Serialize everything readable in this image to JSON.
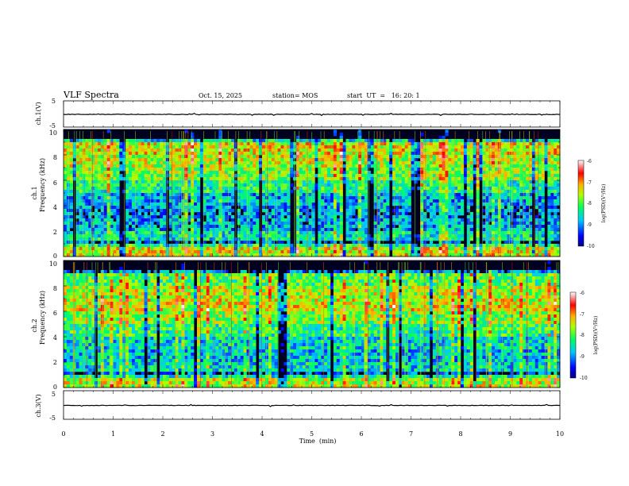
{
  "header": {
    "title": "VLF Spectra",
    "date": "Oct. 15, 2025",
    "station": "station= MOS",
    "start": "start  UT  =   16: 20: 1"
  },
  "chart_data": [
    {
      "type": "line",
      "name": "ch1-waveform",
      "ylabel": "ch.1(V)",
      "ylim": [
        -5,
        5
      ],
      "yticks": [
        "5",
        "-5"
      ],
      "xlim": [
        0,
        10
      ]
    },
    {
      "type": "heatmap",
      "name": "ch1-spectrogram",
      "ylabel_line1": "ch.1",
      "ylabel_line2": "Frequency (kHz)",
      "ylim": [
        0,
        10
      ],
      "yticks": [
        "0",
        "2",
        "4",
        "6",
        "8",
        "10"
      ],
      "xlim": [
        0,
        10
      ],
      "band_profile": [
        0.9,
        0.55,
        0.4,
        0.35,
        0.42,
        0.6,
        0.78,
        0.85,
        0.92,
        0.5
      ],
      "colorbar": {
        "label": "log(PSD)(V²/Hz)",
        "ticks": [
          "-6",
          "-7",
          "-8",
          "-9",
          "-10"
        ],
        "range": [
          -10,
          -6
        ]
      }
    },
    {
      "type": "heatmap",
      "name": "ch2-spectrogram",
      "ylabel_line1": "ch.2",
      "ylabel_line2": "Frequency (kHz)",
      "ylim": [
        0,
        10
      ],
      "yticks": [
        "0",
        "2",
        "4",
        "6",
        "8",
        "10"
      ],
      "xlim": [
        0,
        10
      ],
      "band_profile": [
        0.85,
        0.5,
        0.45,
        0.5,
        0.62,
        0.78,
        0.9,
        0.85,
        0.7,
        0.3
      ],
      "colorbar": {
        "label": "log(PSD)(V²/Hz)",
        "ticks": [
          "-6",
          "-7",
          "-8",
          "-9",
          "-10"
        ],
        "range": [
          -10,
          -6
        ]
      }
    },
    {
      "type": "line",
      "name": "ch3-waveform",
      "ylabel": "ch.3(V)",
      "ylim": [
        -5,
        5
      ],
      "yticks": [
        "5",
        "-5"
      ],
      "xlim": [
        0,
        10
      ]
    }
  ],
  "xaxis": {
    "label": "Time  (min)",
    "ticks": [
      "0",
      "1",
      "2",
      "3",
      "4",
      "5",
      "6",
      "7",
      "8",
      "9",
      "10"
    ]
  },
  "colors": {
    "frame": "#000000",
    "trace": "#000000"
  }
}
